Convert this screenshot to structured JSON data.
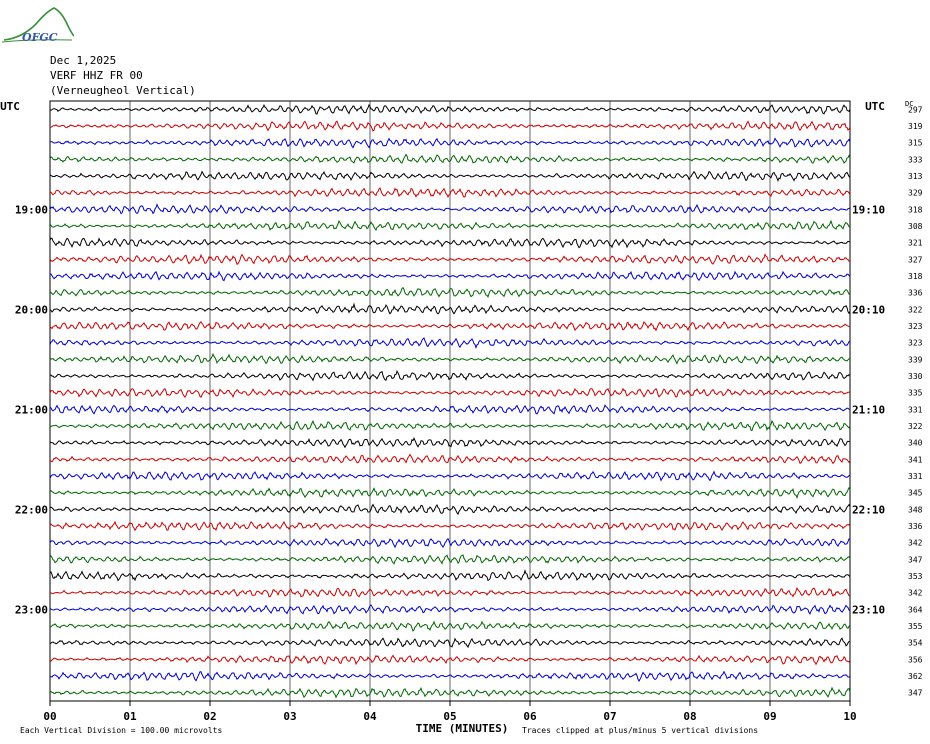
{
  "logo_text": "OFGC",
  "header": {
    "date": "Dec 1,2025",
    "station": "VERF HHZ FR 00",
    "location": "(Verneugheol Vertical)"
  },
  "left_axis_label": "UTC",
  "right_axis_label": "UTC",
  "dc_label": "DC",
  "left_hour_labels": [
    "19:00",
    "20:00",
    "21:00",
    "22:00",
    "23:00"
  ],
  "right_hour_labels": [
    "19:10",
    "20:10",
    "21:10",
    "22:10",
    "23:10"
  ],
  "footer": {
    "scale": "Each Vertical Division =  100.00 microvolts",
    "xlabel": "TIME (MINUTES)",
    "clip_note": "Traces clipped at plus/minus 5 vertical divisions"
  },
  "colors": {
    "trace_cycle": [
      "#000000",
      "#cc0000",
      "#0000cc",
      "#006600"
    ],
    "grid": "#000000"
  },
  "chart_data": {
    "type": "line",
    "xlabel": "TIME (MINUTES)",
    "x_ticks": [
      "00",
      "01",
      "02",
      "03",
      "04",
      "05",
      "06",
      "07",
      "08",
      "09",
      "10"
    ],
    "xlim": [
      0,
      10
    ],
    "trace_count": 36,
    "minutes_per_trace": 10,
    "dc_offsets": [
      297,
      319,
      315,
      333,
      313,
      329,
      318,
      308,
      321,
      327,
      318,
      336,
      322,
      323,
      323,
      339,
      330,
      335,
      331,
      322,
      340,
      341,
      331,
      345,
      348,
      336,
      342,
      347,
      353,
      342,
      364,
      355,
      354,
      356,
      362,
      347
    ]
  }
}
